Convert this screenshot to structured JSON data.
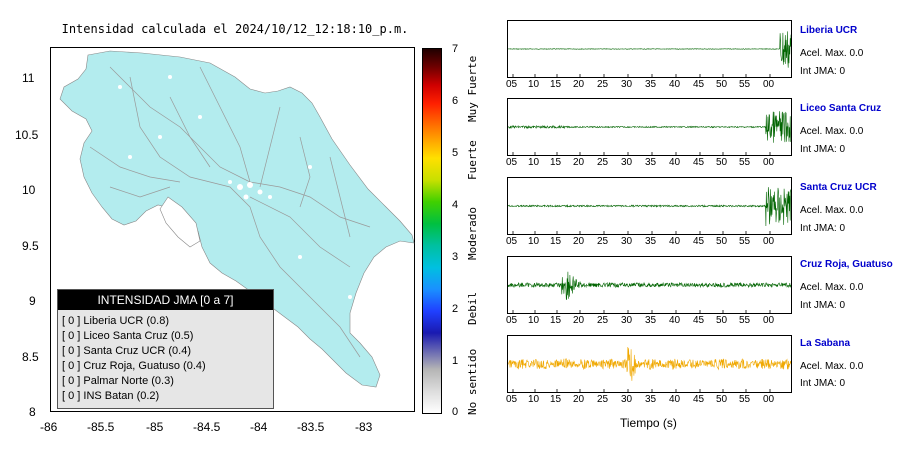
{
  "map": {
    "title": "Intensidad calculada el 2024/10/12_12:18:10_p.m.",
    "y_ticks": [
      "11",
      "10.5",
      "10",
      "9.5",
      "9",
      "8.5",
      "8"
    ],
    "x_ticks": [
      "-86",
      "-85.5",
      "-85",
      "-84.5",
      "-84",
      "-83.5",
      "-83"
    ],
    "land_color": "#b3ecee",
    "legend": {
      "header": "INTENSIDAD JMA [0 a 7]",
      "items": [
        "[ 0 ]  Liberia UCR (0.8)",
        "[ 0 ]  Liceo Santa Cruz (0.5)",
        "[ 0 ]  Santa Cruz UCR (0.4)",
        "[ 0 ]  Cruz Roja, Guatuso (0.4)",
        "[ 0 ]  Palmar Norte (0.3)",
        "[ 0 ]  INS Batan (0.2)"
      ]
    }
  },
  "colorbar": {
    "ticks": [
      "7",
      "6",
      "5",
      "4",
      "3",
      "2",
      "1",
      "0"
    ],
    "labels": [
      "Muy Fuerte",
      "Fuerte",
      "Moderado",
      "Debil",
      "No sentido"
    ]
  },
  "waveforms": {
    "x_ticks": [
      "05",
      "10",
      "15",
      "20",
      "25",
      "30",
      "35",
      "40",
      "45",
      "50",
      "55",
      "00"
    ],
    "xlabel": "Tiempo (s)",
    "panels": [
      {
        "name": "Liberia UCR",
        "acel": "Acel. Max. 0.0",
        "int": "Int JMA: 0",
        "color": "#006400"
      },
      {
        "name": "Liceo Santa Cruz",
        "acel": "Acel. Max. 0.0",
        "int": "Int JMA: 0",
        "color": "#006400"
      },
      {
        "name": "Santa Cruz UCR",
        "acel": "Acel. Max. 0.0",
        "int": "Int JMA: 0",
        "color": "#006400"
      },
      {
        "name": "Cruz Roja, Guatuso",
        "acel": "Acel. Max. 0.0",
        "int": "Int JMA: 0",
        "color": "#006400"
      },
      {
        "name": "La Sabana",
        "acel": "Acel. Max. 0.0",
        "int": "Int JMA: 0",
        "color": "#f0a800"
      }
    ]
  }
}
